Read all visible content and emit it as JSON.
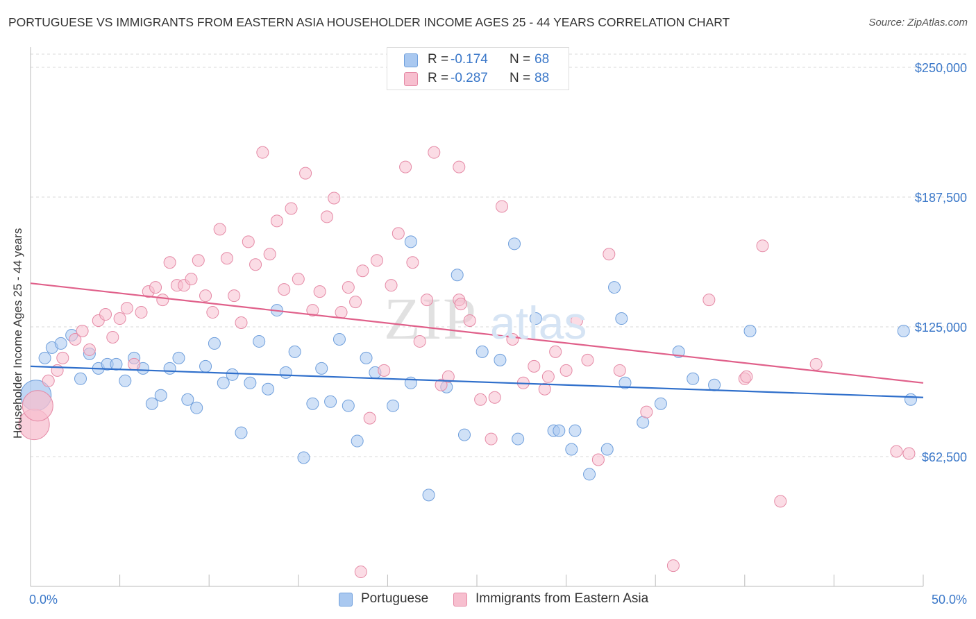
{
  "header": {
    "title": "PORTUGUESE VS IMMIGRANTS FROM EASTERN ASIA HOUSEHOLDER INCOME AGES 25 - 44 YEARS CORRELATION CHART",
    "source": "Source: ZipAtlas.com"
  },
  "watermark": "ZIPatlas",
  "legend_top": [
    {
      "r_label": "R =",
      "r_value": "-0.174",
      "n_label": "N =",
      "n_value": "68"
    },
    {
      "r_label": "R =",
      "r_value": "-0.287",
      "n_label": "N =",
      "n_value": "88"
    }
  ],
  "legend_bottom": [
    "Portuguese",
    "Immigrants from Eastern Asia"
  ],
  "colors": {
    "portuguese_fill": "#a9c8f0",
    "portuguese_stroke": "#6f9fdc",
    "portuguese_line": "#2f6fcb",
    "eastern_asia_fill": "#f7bfcf",
    "eastern_asia_stroke": "#e58aa6",
    "eastern_asia_line": "#e0608a",
    "tick_label": "#3b78c9",
    "grid": "#d8d8d8"
  },
  "chart_data": {
    "type": "scatter",
    "title": "PORTUGUESE VS IMMIGRANTS FROM EASTERN ASIA HOUSEHOLDER INCOME AGES 25 - 44 YEARS CORRELATION CHART",
    "xlabel": "",
    "ylabel": "Householder Income Ages 25 - 44 years",
    "xlim": [
      0,
      50
    ],
    "ylim": [
      0,
      250000
    ],
    "x_tick_labels": [
      "0.0%",
      "50.0%"
    ],
    "y_ticks": [
      62500,
      125000,
      187500,
      250000
    ],
    "y_tick_labels": [
      "$62,500",
      "$125,000",
      "$187,500",
      "$250,000"
    ],
    "grid": true,
    "legend_position": "top-center",
    "series": [
      {
        "name": "Portuguese",
        "r": -0.174,
        "n": 68,
        "trend": {
          "x": [
            0,
            50
          ],
          "y": [
            106000,
            91000
          ]
        },
        "points": [
          {
            "x": 0.3,
            "y": 92000,
            "big": true
          },
          {
            "x": 0.8,
            "y": 110000
          },
          {
            "x": 1.2,
            "y": 115000
          },
          {
            "x": 1.7,
            "y": 117000
          },
          {
            "x": 2.3,
            "y": 121000
          },
          {
            "x": 2.8,
            "y": 100000
          },
          {
            "x": 3.3,
            "y": 112000
          },
          {
            "x": 3.8,
            "y": 105000
          },
          {
            "x": 4.3,
            "y": 107000
          },
          {
            "x": 4.8,
            "y": 107000
          },
          {
            "x": 5.3,
            "y": 99000
          },
          {
            "x": 5.8,
            "y": 110000
          },
          {
            "x": 6.3,
            "y": 105000
          },
          {
            "x": 6.8,
            "y": 88000
          },
          {
            "x": 7.3,
            "y": 92000
          },
          {
            "x": 7.8,
            "y": 105000
          },
          {
            "x": 8.3,
            "y": 110000
          },
          {
            "x": 8.8,
            "y": 90000
          },
          {
            "x": 9.3,
            "y": 86000
          },
          {
            "x": 9.8,
            "y": 106000
          },
          {
            "x": 10.3,
            "y": 117000
          },
          {
            "x": 10.8,
            "y": 98000
          },
          {
            "x": 11.3,
            "y": 102000
          },
          {
            "x": 11.8,
            "y": 74000
          },
          {
            "x": 12.3,
            "y": 98000
          },
          {
            "x": 12.8,
            "y": 118000
          },
          {
            "x": 13.3,
            "y": 95000
          },
          {
            "x": 13.8,
            "y": 133000
          },
          {
            "x": 14.3,
            "y": 103000
          },
          {
            "x": 14.8,
            "y": 113000
          },
          {
            "x": 15.3,
            "y": 62000
          },
          {
            "x": 15.8,
            "y": 88000
          },
          {
            "x": 16.3,
            "y": 105000
          },
          {
            "x": 16.8,
            "y": 89000
          },
          {
            "x": 17.3,
            "y": 119000
          },
          {
            "x": 17.8,
            "y": 87000
          },
          {
            "x": 18.3,
            "y": 70000
          },
          {
            "x": 18.8,
            "y": 110000
          },
          {
            "x": 19.3,
            "y": 103000
          },
          {
            "x": 20.3,
            "y": 87000
          },
          {
            "x": 21.3,
            "y": 98000
          },
          {
            "x": 22.3,
            "y": 44000
          },
          {
            "x": 23.3,
            "y": 96000
          },
          {
            "x": 24.3,
            "y": 73000
          },
          {
            "x": 25.3,
            "y": 113000
          },
          {
            "x": 26.3,
            "y": 109000
          },
          {
            "x": 27.3,
            "y": 71000
          },
          {
            "x": 28.3,
            "y": 129000
          },
          {
            "x": 29.3,
            "y": 75000
          },
          {
            "x": 30.3,
            "y": 66000
          },
          {
            "x": 31.3,
            "y": 54000
          },
          {
            "x": 32.3,
            "y": 66000
          },
          {
            "x": 33.3,
            "y": 98000
          },
          {
            "x": 34.3,
            "y": 79000
          },
          {
            "x": 35.3,
            "y": 88000
          },
          {
            "x": 36.3,
            "y": 113000
          },
          {
            "x": 38.3,
            "y": 97000
          },
          {
            "x": 40.3,
            "y": 123000
          },
          {
            "x": 21.3,
            "y": 166000
          },
          {
            "x": 23.9,
            "y": 150000
          },
          {
            "x": 27.1,
            "y": 165000
          },
          {
            "x": 32.7,
            "y": 144000
          },
          {
            "x": 29.6,
            "y": 75000
          },
          {
            "x": 33.1,
            "y": 129000
          },
          {
            "x": 48.9,
            "y": 123000
          },
          {
            "x": 49.3,
            "y": 90000
          },
          {
            "x": 30.5,
            "y": 75000
          },
          {
            "x": 37.1,
            "y": 100000
          }
        ]
      },
      {
        "name": "Immigrants from Eastern Asia",
        "r": -0.287,
        "n": 88,
        "trend": {
          "x": [
            0,
            50
          ],
          "y": [
            146000,
            98000
          ]
        },
        "points": [
          {
            "x": 0.2,
            "y": 78000,
            "big": true
          },
          {
            "x": 0.4,
            "y": 87000,
            "big": true
          },
          {
            "x": 1.0,
            "y": 99000
          },
          {
            "x": 1.5,
            "y": 104000
          },
          {
            "x": 1.8,
            "y": 110000
          },
          {
            "x": 2.5,
            "y": 119000
          },
          {
            "x": 2.9,
            "y": 123000
          },
          {
            "x": 3.3,
            "y": 114000
          },
          {
            "x": 3.8,
            "y": 128000
          },
          {
            "x": 4.2,
            "y": 131000
          },
          {
            "x": 4.6,
            "y": 120000
          },
          {
            "x": 5.0,
            "y": 129000
          },
          {
            "x": 5.4,
            "y": 134000
          },
          {
            "x": 5.8,
            "y": 107000
          },
          {
            "x": 6.2,
            "y": 132000
          },
          {
            "x": 6.6,
            "y": 142000
          },
          {
            "x": 7.0,
            "y": 144000
          },
          {
            "x": 7.4,
            "y": 138000
          },
          {
            "x": 7.8,
            "y": 156000
          },
          {
            "x": 8.2,
            "y": 145000
          },
          {
            "x": 8.6,
            "y": 145000
          },
          {
            "x": 9.0,
            "y": 148000
          },
          {
            "x": 9.4,
            "y": 157000
          },
          {
            "x": 9.8,
            "y": 140000
          },
          {
            "x": 10.2,
            "y": 132000
          },
          {
            "x": 10.6,
            "y": 172000
          },
          {
            "x": 11.0,
            "y": 158000
          },
          {
            "x": 11.4,
            "y": 140000
          },
          {
            "x": 11.8,
            "y": 127000
          },
          {
            "x": 12.2,
            "y": 166000
          },
          {
            "x": 12.6,
            "y": 155000
          },
          {
            "x": 13.0,
            "y": 209000
          },
          {
            "x": 13.4,
            "y": 160000
          },
          {
            "x": 13.8,
            "y": 176000
          },
          {
            "x": 14.2,
            "y": 143000
          },
          {
            "x": 14.6,
            "y": 182000
          },
          {
            "x": 15.0,
            "y": 148000
          },
          {
            "x": 15.4,
            "y": 199000
          },
          {
            "x": 15.8,
            "y": 133000
          },
          {
            "x": 16.2,
            "y": 142000
          },
          {
            "x": 16.6,
            "y": 178000
          },
          {
            "x": 17.0,
            "y": 187000
          },
          {
            "x": 17.4,
            "y": 132000
          },
          {
            "x": 17.8,
            "y": 144000
          },
          {
            "x": 18.2,
            "y": 137000
          },
          {
            "x": 18.6,
            "y": 152000
          },
          {
            "x": 19.0,
            "y": 81000
          },
          {
            "x": 19.4,
            "y": 157000
          },
          {
            "x": 19.8,
            "y": 104000
          },
          {
            "x": 20.2,
            "y": 145000
          },
          {
            "x": 20.6,
            "y": 170000
          },
          {
            "x": 21.0,
            "y": 202000
          },
          {
            "x": 21.4,
            "y": 156000
          },
          {
            "x": 21.8,
            "y": 118000
          },
          {
            "x": 22.2,
            "y": 138000
          },
          {
            "x": 22.6,
            "y": 209000
          },
          {
            "x": 23.0,
            "y": 97000
          },
          {
            "x": 23.4,
            "y": 101000
          },
          {
            "x": 24.0,
            "y": 138000
          },
          {
            "x": 24.6,
            "y": 128000
          },
          {
            "x": 25.2,
            "y": 90000
          },
          {
            "x": 25.8,
            "y": 71000
          },
          {
            "x": 26.4,
            "y": 183000
          },
          {
            "x": 27.0,
            "y": 119000
          },
          {
            "x": 27.6,
            "y": 98000
          },
          {
            "x": 28.2,
            "y": 106000
          },
          {
            "x": 28.8,
            "y": 95000
          },
          {
            "x": 29.4,
            "y": 113000
          },
          {
            "x": 30.0,
            "y": 104000
          },
          {
            "x": 30.6,
            "y": 128000
          },
          {
            "x": 31.2,
            "y": 109000
          },
          {
            "x": 31.8,
            "y": 61000
          },
          {
            "x": 32.4,
            "y": 160000
          },
          {
            "x": 33.0,
            "y": 104000
          },
          {
            "x": 34.5,
            "y": 84000
          },
          {
            "x": 36.0,
            "y": 10000
          },
          {
            "x": 38.0,
            "y": 138000
          },
          {
            "x": 40.0,
            "y": 100000
          },
          {
            "x": 41.0,
            "y": 164000
          },
          {
            "x": 42.0,
            "y": 41000
          },
          {
            "x": 44.0,
            "y": 107000
          },
          {
            "x": 48.5,
            "y": 65000
          },
          {
            "x": 49.2,
            "y": 64000
          },
          {
            "x": 18.5,
            "y": 7000
          },
          {
            "x": 24.0,
            "y": 202000
          },
          {
            "x": 40.1,
            "y": 101000
          },
          {
            "x": 26.0,
            "y": 91000
          },
          {
            "x": 29.0,
            "y": 101000
          },
          {
            "x": 24.1,
            "y": 136000
          }
        ]
      }
    ]
  }
}
